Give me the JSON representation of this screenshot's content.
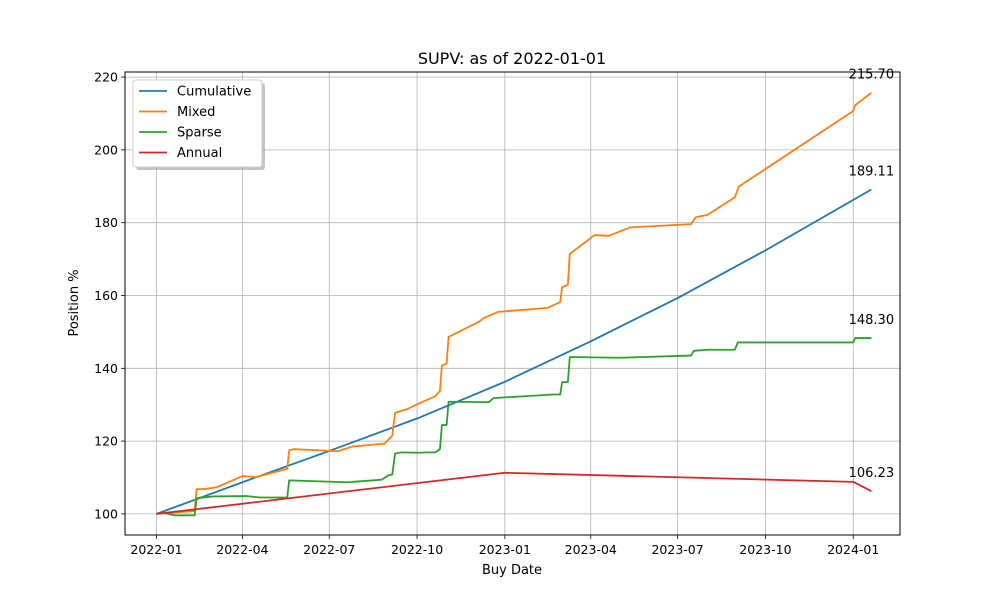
{
  "chart_data": {
    "type": "line",
    "title": "SUPV: as of 2022-01-01",
    "xlabel": "Buy Date",
    "ylabel": "Position %",
    "xlim": [
      "2021-11-29",
      "2024-02-19"
    ],
    "ylim": [
      94.2,
      221.4
    ],
    "grid": true,
    "legend_position": "top-left",
    "x_ticks": [
      "2022-01",
      "2022-04",
      "2022-07",
      "2022-10",
      "2023-01",
      "2023-04",
      "2023-07",
      "2023-10",
      "2024-01"
    ],
    "y_ticks": [
      100,
      120,
      140,
      160,
      180,
      200,
      220
    ],
    "series": [
      {
        "name": "Cumulative",
        "color": "#1f77b4",
        "end_label": "189.11",
        "points": [
          [
            "2022-01-01",
            100
          ],
          [
            "2022-04-01",
            108.7
          ],
          [
            "2022-07-01",
            117.3
          ],
          [
            "2022-10-01",
            126.2
          ],
          [
            "2023-01-01",
            136.3
          ],
          [
            "2023-04-01",
            147.4
          ],
          [
            "2023-07-01",
            159.3
          ],
          [
            "2023-10-01",
            172.4
          ],
          [
            "2024-01-20",
            189.11
          ]
        ]
      },
      {
        "name": "Mixed",
        "color": "#ff7f0e",
        "end_label": "215.70",
        "points": [
          [
            "2022-01-01",
            100
          ],
          [
            "2022-02-10",
            100.8
          ],
          [
            "2022-02-12",
            106.8
          ],
          [
            "2022-02-20",
            106.8
          ],
          [
            "2022-03-05",
            107.3
          ],
          [
            "2022-04-01",
            110.4
          ],
          [
            "2022-04-15",
            110.1
          ],
          [
            "2022-05-18",
            112.4
          ],
          [
            "2022-05-20",
            117.5
          ],
          [
            "2022-05-25",
            117.8
          ],
          [
            "2022-07-10",
            117.2
          ],
          [
            "2022-07-25",
            118.5
          ],
          [
            "2022-08-28",
            119.3
          ],
          [
            "2022-09-05",
            121.5
          ],
          [
            "2022-09-08",
            127.8
          ],
          [
            "2022-09-20",
            128.7
          ],
          [
            "2022-10-01",
            130.1
          ],
          [
            "2022-10-20",
            132.3
          ],
          [
            "2022-10-25",
            133.8
          ],
          [
            "2022-10-27",
            140.7
          ],
          [
            "2022-11-01",
            141.3
          ],
          [
            "2022-11-03",
            148.6
          ],
          [
            "2022-12-05",
            152.8
          ],
          [
            "2022-12-10",
            153.8
          ],
          [
            "2022-12-25",
            155.5
          ],
          [
            "2023-02-15",
            156.6
          ],
          [
            "2023-02-28",
            158.2
          ],
          [
            "2023-03-02",
            162.3
          ],
          [
            "2023-03-08",
            162.9
          ],
          [
            "2023-03-10",
            171.4
          ],
          [
            "2023-04-05",
            176.6
          ],
          [
            "2023-04-20",
            176.4
          ],
          [
            "2023-05-12",
            178.7
          ],
          [
            "2023-07-15",
            179.6
          ],
          [
            "2023-07-20",
            181.5
          ],
          [
            "2023-08-01",
            182.1
          ],
          [
            "2023-08-30",
            187.0
          ],
          [
            "2023-09-03",
            189.9
          ],
          [
            "2024-01-01",
            210.7
          ],
          [
            "2024-01-03",
            212.3
          ],
          [
            "2024-01-20",
            215.7
          ]
        ]
      },
      {
        "name": "Sparse",
        "color": "#2ca02c",
        "end_label": "148.30",
        "points": [
          [
            "2022-01-01",
            100
          ],
          [
            "2022-01-10",
            100.2
          ],
          [
            "2022-01-20",
            99.6
          ],
          [
            "2022-02-10",
            99.6
          ],
          [
            "2022-02-12",
            104.3
          ],
          [
            "2022-03-01",
            104.8
          ],
          [
            "2022-04-05",
            104.9
          ],
          [
            "2022-04-20",
            104.5
          ],
          [
            "2022-05-18",
            104.5
          ],
          [
            "2022-05-20",
            109.2
          ],
          [
            "2022-07-20",
            108.7
          ],
          [
            "2022-08-25",
            109.4
          ],
          [
            "2022-09-01",
            110.6
          ],
          [
            "2022-09-05",
            110.8
          ],
          [
            "2022-09-08",
            116.6
          ],
          [
            "2022-09-15",
            116.9
          ],
          [
            "2022-10-05",
            116.8
          ],
          [
            "2022-10-10",
            116.9
          ],
          [
            "2022-10-20",
            116.9
          ],
          [
            "2022-10-25",
            117.8
          ],
          [
            "2022-10-27",
            124.4
          ],
          [
            "2022-11-01",
            124.4
          ],
          [
            "2022-11-03",
            130.8
          ],
          [
            "2022-12-15",
            130.7
          ],
          [
            "2022-12-20",
            131.8
          ],
          [
            "2023-01-01",
            132.0
          ],
          [
            "2023-02-20",
            132.8
          ],
          [
            "2023-02-28",
            132.8
          ],
          [
            "2023-03-02",
            136.2
          ],
          [
            "2023-03-08",
            136.2
          ],
          [
            "2023-03-10",
            143.1
          ],
          [
            "2023-05-01",
            142.9
          ],
          [
            "2023-07-15",
            143.5
          ],
          [
            "2023-07-18",
            144.8
          ],
          [
            "2023-08-01",
            145.1
          ],
          [
            "2023-08-30",
            145.1
          ],
          [
            "2023-09-02",
            147.1
          ],
          [
            "2024-01-01",
            147.1
          ],
          [
            "2024-01-03",
            148.3
          ],
          [
            "2024-01-20",
            148.3
          ]
        ]
      },
      {
        "name": "Annual",
        "color": "#d62728",
        "end_label": "106.23",
        "points": [
          [
            "2022-01-01",
            100
          ],
          [
            "2023-01-01",
            111.3
          ],
          [
            "2024-01-01",
            108.8
          ],
          [
            "2024-01-20",
            106.23
          ]
        ]
      }
    ]
  }
}
